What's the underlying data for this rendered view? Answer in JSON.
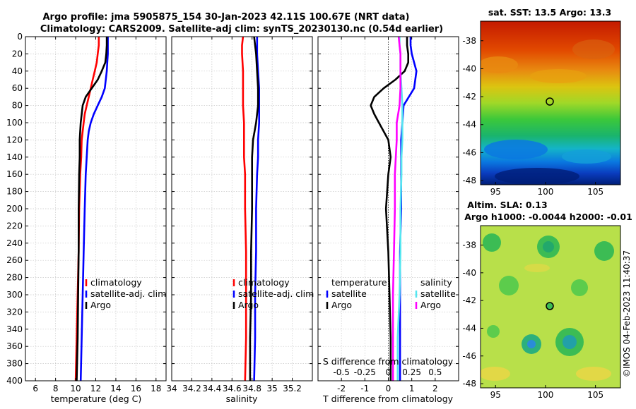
{
  "header": {
    "title_line1": "Argo profile: jma 5905875_154 30-Jan-2023 42.11S 100.67E (NRT data)",
    "title_line2": "Climatology: CARS2009. Satellite-adj clim: synTS_20230130.nc (0.54d earlier)"
  },
  "sst_map": {
    "title": "sat. SST: 13.5 Argo: 13.3",
    "lat_ticks": [
      "-38",
      "-40",
      "-42",
      "-44",
      "-46",
      "-48"
    ],
    "lon_ticks": [
      "95",
      "100",
      "105"
    ]
  },
  "sla_map": {
    "title_line1": "Altim. SLA: 0.13",
    "title_line2": "Argo h1000: -0.0044 h2000: -0.01",
    "lat_ticks": [
      "-38",
      "-40",
      "-42",
      "-44",
      "-46",
      "-48"
    ],
    "lon_ticks": [
      "95",
      "100",
      "105"
    ]
  },
  "watermark": "©IMOS 04-Feb-2023 11:40:37",
  "legends": {
    "climatology": "climatology",
    "satellite_adj": "satellite-adj. clim",
    "argo": "Argo",
    "temperature": "temperature",
    "salinity": "salinity",
    "satellite": "satellite"
  },
  "colors": {
    "climatology": "#ff0000",
    "satellite": "#0000ff",
    "argo": "#000000",
    "sat_temp_diff": "#0000ff",
    "sat_sal_diff": "#55e6f0",
    "argo_sal_diff": "#ff00ff",
    "grid": "#c8c8c8"
  },
  "chart_data": [
    {
      "type": "line",
      "title": "",
      "xlabel": "temperature (deg C)",
      "ylabel": "",
      "xlim": [
        5,
        19
      ],
      "ylim": [
        400,
        0
      ],
      "xticks": [
        6,
        8,
        10,
        12,
        14,
        16,
        18
      ],
      "xtick_labels": [
        "6",
        "8",
        "10",
        "12",
        "14",
        "16",
        "18"
      ],
      "yticks": [
        0,
        20,
        40,
        60,
        80,
        100,
        120,
        140,
        160,
        180,
        200,
        220,
        240,
        260,
        280,
        300,
        320,
        340,
        360,
        380,
        400
      ],
      "ytick_labels": [
        "0",
        "20",
        "40",
        "60",
        "80",
        "100",
        "120",
        "140",
        "160",
        "180",
        "200",
        "220",
        "240",
        "260",
        "280",
        "300",
        "320",
        "340",
        "360",
        "380",
        "400"
      ],
      "grid": true,
      "legend": "lower-right",
      "series": [
        {
          "name": "climatology",
          "depth": [
            0,
            10,
            20,
            30,
            40,
            50,
            60,
            70,
            80,
            90,
            100,
            110,
            120,
            140,
            160,
            200,
            250,
            300,
            350,
            400
          ],
          "values": [
            12.3,
            12.3,
            12.2,
            12.1,
            11.9,
            11.7,
            11.5,
            11.3,
            11.1,
            10.9,
            10.8,
            10.7,
            10.6,
            10.55,
            10.45,
            10.35,
            10.3,
            10.2,
            10.1,
            10.0
          ]
        },
        {
          "name": "satellite-adj. clim",
          "depth": [
            0,
            10,
            20,
            30,
            40,
            50,
            60,
            70,
            80,
            90,
            100,
            110,
            120,
            140,
            160,
            200,
            250,
            300,
            350,
            400
          ],
          "values": [
            13.2,
            13.2,
            13.2,
            13.15,
            13.1,
            13.0,
            12.9,
            12.6,
            12.2,
            11.8,
            11.5,
            11.3,
            11.2,
            11.1,
            11.0,
            10.9,
            10.8,
            10.7,
            10.6,
            10.5
          ]
        },
        {
          "name": "Argo",
          "depth": [
            0,
            10,
            20,
            30,
            40,
            50,
            60,
            70,
            80,
            90,
            100,
            110,
            120,
            140,
            160,
            200,
            250,
            300,
            350,
            400
          ],
          "values": [
            13.1,
            13.1,
            13.05,
            12.95,
            12.6,
            12.2,
            11.6,
            11.0,
            10.7,
            10.6,
            10.5,
            10.45,
            10.4,
            10.4,
            10.35,
            10.3,
            10.3,
            10.25,
            10.2,
            10.1
          ]
        }
      ]
    },
    {
      "type": "line",
      "title": "",
      "xlabel": "salinity",
      "ylabel": "",
      "xlim": [
        34.0,
        35.4
      ],
      "ylim": [
        400,
        0
      ],
      "xticks": [
        34.0,
        34.2,
        34.4,
        34.6,
        34.8,
        35.0,
        35.2
      ],
      "xtick_labels": [
        "34",
        "34.2",
        "34.4",
        "34.6",
        "34.8",
        "35",
        "35.2"
      ],
      "grid": true,
      "legend": "lower-right",
      "series": [
        {
          "name": "climatology",
          "depth": [
            0,
            10,
            20,
            40,
            60,
            80,
            100,
            120,
            140,
            160,
            200,
            250,
            300,
            350,
            400
          ],
          "values": [
            34.71,
            34.7,
            34.7,
            34.71,
            34.71,
            34.71,
            34.72,
            34.72,
            34.72,
            34.73,
            34.73,
            34.74,
            34.74,
            34.74,
            34.73
          ]
        },
        {
          "name": "satellite-adj. clim",
          "depth": [
            0,
            10,
            20,
            40,
            60,
            80,
            100,
            120,
            140,
            160,
            200,
            250,
            300,
            350,
            400
          ],
          "values": [
            34.85,
            34.85,
            34.85,
            34.86,
            34.87,
            34.87,
            34.87,
            34.86,
            34.86,
            34.85,
            34.84,
            34.84,
            34.83,
            34.83,
            34.82
          ]
        },
        {
          "name": "Argo",
          "depth": [
            0,
            10,
            20,
            40,
            60,
            80,
            100,
            120,
            140,
            160,
            200,
            250,
            300,
            350,
            400
          ],
          "values": [
            34.82,
            34.83,
            34.84,
            34.85,
            34.86,
            34.86,
            34.84,
            34.81,
            34.8,
            34.8,
            34.8,
            34.79,
            34.79,
            34.78,
            34.78
          ]
        }
      ]
    },
    {
      "type": "line",
      "title": "",
      "xlabel": "T difference from climatology",
      "xlabel_top": "S difference from climatology",
      "ylabel": "",
      "xlim": [
        -3,
        3
      ],
      "ylim": [
        400,
        0
      ],
      "xticks": [
        -2,
        -1,
        0,
        1,
        2
      ],
      "xtick_labels": [
        "-2",
        "-1",
        "0",
        "1",
        "2"
      ],
      "secondary_xlim": [
        -0.75,
        0.75
      ],
      "secondary_xticks": [
        -0.5,
        -0.25,
        0,
        0.25,
        0.5
      ],
      "secondary_xtick_labels": [
        "-0.5",
        "-0.25",
        "0",
        "0.25",
        "0.5"
      ],
      "grid": true,
      "legend": "lower-right",
      "series": [
        {
          "name": "temperature satellite",
          "axis": "T",
          "depth": [
            0,
            10,
            20,
            40,
            60,
            80,
            100,
            120,
            140,
            160,
            200,
            250,
            300,
            350,
            400
          ],
          "values": [
            0.95,
            0.95,
            1.0,
            1.2,
            1.1,
            0.65,
            0.6,
            0.55,
            0.55,
            0.55,
            0.55,
            0.5,
            0.5,
            0.5,
            0.5
          ]
        },
        {
          "name": "temperature Argo",
          "axis": "T",
          "depth": [
            0,
            10,
            20,
            30,
            40,
            50,
            60,
            70,
            80,
            90,
            100,
            110,
            120,
            140,
            160,
            200,
            250,
            300,
            350,
            400
          ],
          "values": [
            0.8,
            0.8,
            0.85,
            0.85,
            0.7,
            0.3,
            -0.2,
            -0.6,
            -0.75,
            -0.6,
            -0.4,
            -0.2,
            0.0,
            0.1,
            0.0,
            -0.1,
            0.0,
            0.05,
            0.1,
            0.1
          ]
        },
        {
          "name": "salinity satellite",
          "axis": "S",
          "depth": [
            0,
            10,
            20,
            40,
            60,
            80,
            100,
            120,
            140,
            160,
            200,
            250,
            300,
            350,
            400
          ],
          "values": [
            0.12,
            0.12,
            0.13,
            0.13,
            0.14,
            0.15,
            0.15,
            0.15,
            0.14,
            0.14,
            0.13,
            0.13,
            0.12,
            0.1,
            0.1
          ]
        },
        {
          "name": "salinity Argo",
          "axis": "S",
          "depth": [
            0,
            10,
            20,
            40,
            60,
            80,
            100,
            120,
            140,
            160,
            200,
            250,
            300,
            350,
            400
          ],
          "values": [
            0.11,
            0.12,
            0.13,
            0.13,
            0.13,
            0.12,
            0.09,
            0.09,
            0.08,
            0.07,
            0.07,
            0.06,
            0.05,
            0.05,
            0.05
          ]
        }
      ]
    }
  ]
}
